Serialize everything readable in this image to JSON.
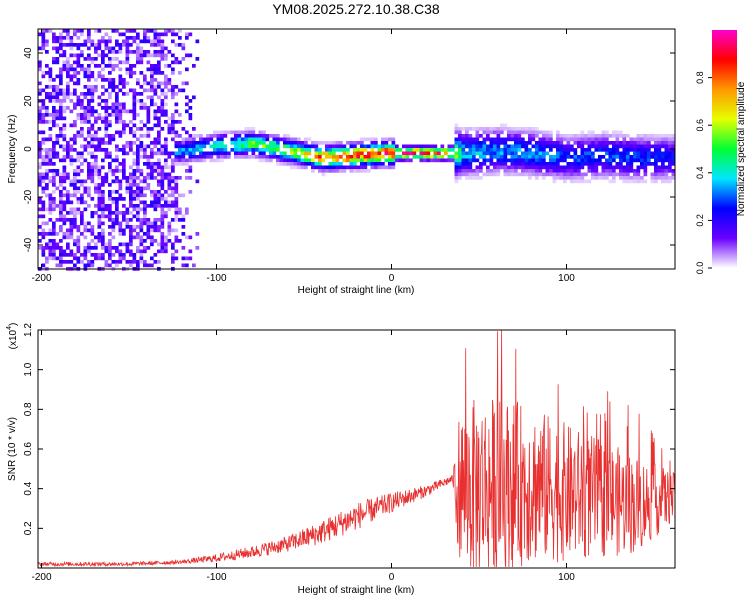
{
  "title": "YM08.2025.272.10.38.C38",
  "chart_data": [
    {
      "type": "heatmap",
      "xlabel": "Height of straight line (km)",
      "ylabel": "Frequency (Hz)",
      "xlim": [
        -202,
        162
      ],
      "ylim": [
        -50,
        50
      ],
      "x_ticks": [
        -200,
        -100,
        0,
        100
      ],
      "y_ticks": [
        40,
        20,
        0,
        -20,
        -40
      ],
      "band_profile": {
        "x": [
          -120,
          -100,
          -80,
          -60,
          -40,
          -20,
          0,
          20,
          30,
          40,
          60,
          80,
          100,
          120,
          140,
          162
        ],
        "center_hz": [
          0,
          2,
          3,
          0,
          -3,
          -2,
          -1,
          -1,
          -1,
          -1,
          0,
          -1,
          -3,
          -2,
          -3,
          -3
        ],
        "peak_amplitude": [
          0.35,
          0.45,
          0.55,
          0.6,
          0.85,
          0.9,
          0.95,
          0.95,
          0.9,
          0.4,
          0.35,
          0.35,
          0.3,
          0.3,
          0.3,
          0.25
        ]
      },
      "noise_region": {
        "x_range": [
          -202,
          -110
        ],
        "amplitude": [
          0.0,
          0.2
        ]
      }
    },
    {
      "type": "line",
      "xlabel": "Height of straight line (km)",
      "ylabel": "SNR (10 * v/v)",
      "y_multiplier": "(x10",
      "y_multiplier_exp": "4",
      "y_multiplier_close": ")",
      "xlim": [
        -202,
        162
      ],
      "ylim": [
        0,
        1.2
      ],
      "x_ticks": [
        -200,
        -100,
        0,
        100
      ],
      "y_ticks": [
        0.2,
        0.4,
        0.6,
        0.8,
        1.0,
        1.2
      ],
      "series": [
        {
          "name": "SNR",
          "color": "#e83030",
          "x": [
            -202,
            -150,
            -120,
            -100,
            -80,
            -60,
            -40,
            -20,
            0,
            20,
            35,
            38,
            45,
            60,
            80,
            100,
            120,
            140,
            162
          ],
          "trend": [
            0.02,
            0.02,
            0.03,
            0.05,
            0.08,
            0.12,
            0.18,
            0.26,
            0.33,
            0.39,
            0.45,
            0.42,
            0.4,
            0.42,
            0.42,
            0.38,
            0.35,
            0.32,
            0.36
          ],
          "spread": [
            0.01,
            0.01,
            0.01,
            0.02,
            0.03,
            0.04,
            0.06,
            0.07,
            0.05,
            0.03,
            0.02,
            0.35,
            0.45,
            0.45,
            0.4,
            0.35,
            0.3,
            0.25,
            0.12
          ]
        }
      ]
    }
  ],
  "colorbar": {
    "label": "Normalized spectral amplitude",
    "range": [
      0,
      1
    ],
    "ticks": [
      0.0,
      0.2,
      0.4,
      0.6,
      0.8
    ],
    "tick_labels": [
      "0.0",
      "0.2",
      "0.4",
      "0.6",
      "0.8"
    ],
    "colors": [
      "#ffffff",
      "#6a00ff",
      "#0000ff",
      "#00e5ff",
      "#00ff33",
      "#e6ff00",
      "#ff9900",
      "#ff0000",
      "#ff00cc"
    ]
  }
}
